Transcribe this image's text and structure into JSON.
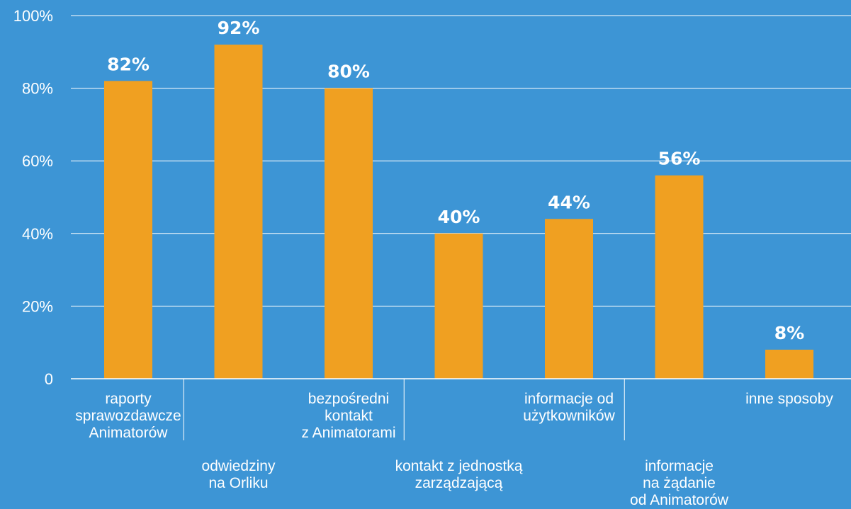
{
  "colors": {
    "background": "#3d95d5",
    "bar": "#f0a021",
    "text": "#ffffff",
    "grid": "#ffffff"
  },
  "chart_data": {
    "type": "bar",
    "title": "",
    "xlabel": "",
    "ylabel": "",
    "ylim": [
      0,
      100
    ],
    "grid": true,
    "legend": "none",
    "y_ticks": [
      {
        "value": 0,
        "label": "0"
      },
      {
        "value": 20,
        "label": "20%"
      },
      {
        "value": 40,
        "label": "40%"
      },
      {
        "value": 60,
        "label": "60%"
      },
      {
        "value": 80,
        "label": "80%"
      },
      {
        "value": 100,
        "label": "100%"
      }
    ],
    "categories": [
      "raporty sprawozdawcze Animatorów",
      "odwiedziny na Orliku",
      "bezpośredni kontakt z Animatorami",
      "kontakt z jednostką zarządzającą",
      "informacje od użytkowników",
      "informacje na żądanie od Animatorów",
      "inne sposoby"
    ],
    "category_label_lines": [
      [
        "raporty",
        "sprawozdawcze",
        "Animatorów"
      ],
      [
        "odwiedziny",
        "na Orliku"
      ],
      [
        "bezpośredni",
        "kontakt",
        "z Animatorami"
      ],
      [
        "kontakt z jednostką",
        "zarządzającą"
      ],
      [
        "informacje od",
        "użytkowników"
      ],
      [
        "informacje",
        "na żądanie",
        "od Animatorów"
      ],
      [
        "inne sposoby"
      ]
    ],
    "values": [
      82,
      92,
      80,
      40,
      44,
      56,
      8
    ],
    "value_labels": [
      "82%",
      "92%",
      "80%",
      "40%",
      "44%",
      "56%",
      "8%"
    ]
  }
}
